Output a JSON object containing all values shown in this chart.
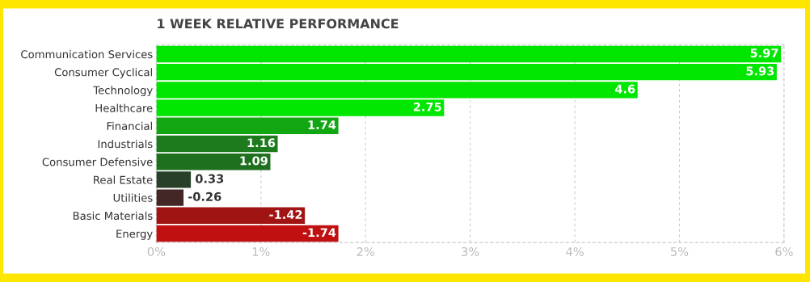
{
  "chart_data": {
    "type": "bar",
    "orientation": "horizontal",
    "title": "1 WEEK RELATIVE PERFORMANCE",
    "categories": [
      "Communication Services",
      "Consumer Cyclical",
      "Technology",
      "Healthcare",
      "Financial",
      "Industrials",
      "Consumer Defensive",
      "Real Estate",
      "Utilities",
      "Basic Materials",
      "Energy"
    ],
    "values": [
      5.97,
      5.93,
      4.6,
      2.75,
      1.74,
      1.16,
      1.09,
      0.33,
      -0.26,
      -1.42,
      -1.74
    ],
    "base": [
      0,
      0,
      0,
      0,
      0,
      0,
      0,
      0,
      0.26,
      1.42,
      1.74
    ],
    "colors": [
      "#00e600",
      "#00e600",
      "#00e600",
      "#00e600",
      "#12a712",
      "#1d7a1d",
      "#1e6f1e",
      "#28402a",
      "#432626",
      "#a01414",
      "#c01010"
    ],
    "xlim": [
      0,
      6
    ],
    "xticks": [
      {
        "value": 0,
        "label": "0%"
      },
      {
        "value": 1,
        "label": "1%"
      },
      {
        "value": 2,
        "label": "2%"
      },
      {
        "value": 3,
        "label": "3%"
      },
      {
        "value": 4,
        "label": "4%"
      },
      {
        "value": 5,
        "label": "5%"
      },
      {
        "value": 6,
        "label": "6%"
      }
    ],
    "grid": "x",
    "data_labels": true,
    "legend": false
  }
}
